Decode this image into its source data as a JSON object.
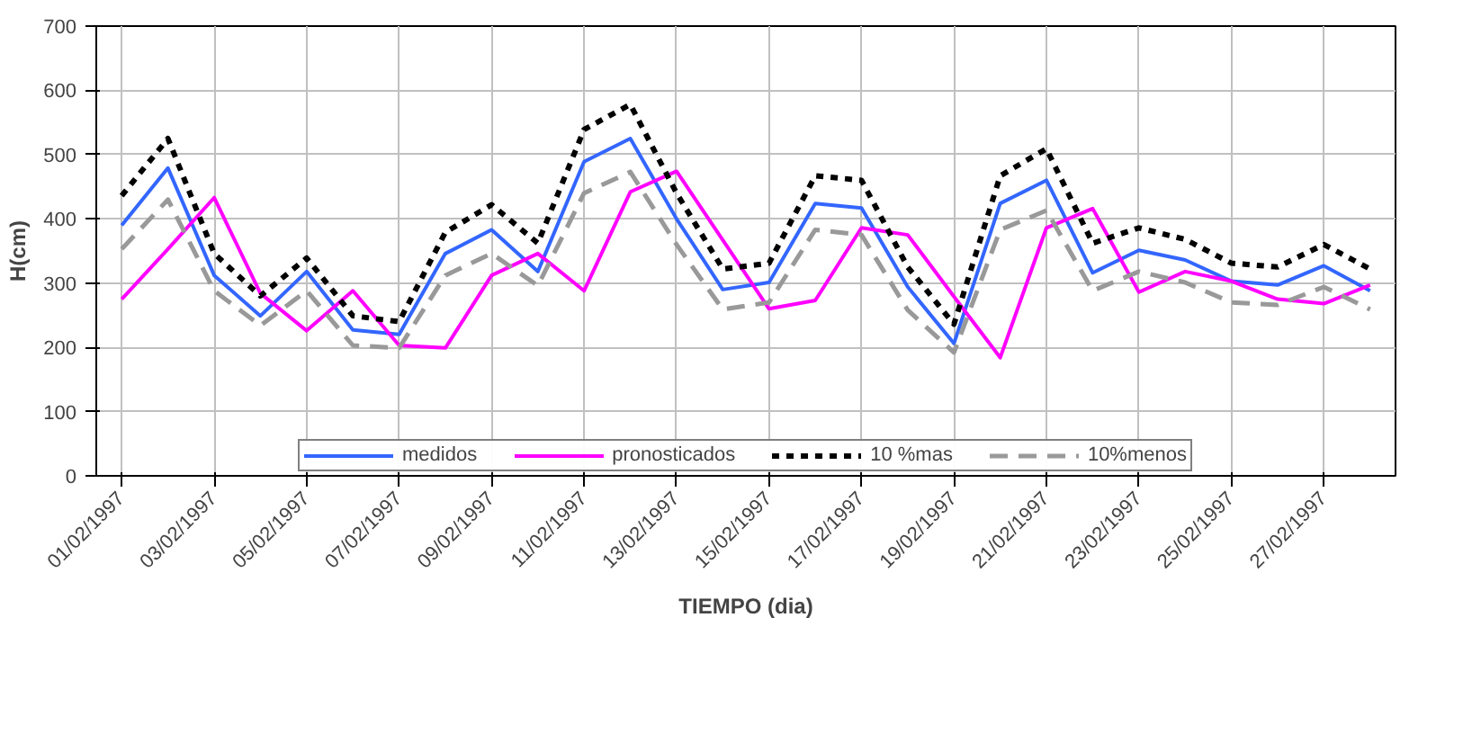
{
  "chart_data": {
    "type": "line",
    "xlabel": "TIEMPO (dia)",
    "ylabel": "H(cm)",
    "categories": [
      "01/02/1997",
      null,
      "03/02/1997",
      null,
      "05/02/1997",
      null,
      "07/02/1997",
      null,
      "09/02/1997",
      null,
      "11/02/1997",
      null,
      "13/02/1997",
      null,
      "15/02/1997",
      null,
      "17/02/1997",
      null,
      "19/02/1997",
      null,
      "21/02/1997",
      null,
      "23/02/1997",
      null,
      "25/02/1997",
      null,
      "27/02/1997",
      null
    ],
    "ylim": [
      0,
      700
    ],
    "yticks": [
      0,
      100,
      200,
      300,
      400,
      500,
      600,
      700
    ],
    "grid": true,
    "legend": "bottom",
    "marker": "none",
    "series": [
      {
        "name": "medidos",
        "color": "#3366ff",
        "line_style": "solid",
        "values": [
          390,
          479,
          312,
          249,
          318,
          227,
          220,
          346,
          383,
          318,
          489,
          525,
          400,
          290,
          301,
          424,
          417,
          294,
          206,
          424,
          460,
          316,
          351,
          336,
          303,
          297,
          327,
          288
        ]
      },
      {
        "name": "pronosticados",
        "color": "#ff00ff",
        "line_style": "solid",
        "values": [
          275,
          353,
          433,
          284,
          226,
          288,
          203,
          199,
          312,
          346,
          288,
          442,
          474,
          367,
          260,
          273,
          386,
          375,
          279,
          184,
          386,
          416,
          286,
          318,
          303,
          275,
          268,
          297
        ]
      },
      {
        "name": "10 %mas",
        "color": "#000000",
        "line_style": "dotted",
        "values": [
          436,
          525,
          346,
          280,
          339,
          249,
          240,
          379,
          422,
          362,
          539,
          578,
          440,
          322,
          331,
          467,
          460,
          325,
          236,
          467,
          509,
          362,
          386,
          368,
          331,
          325,
          360,
          322
        ]
      },
      {
        "name": "10%menos",
        "color": "#999999",
        "line_style": "dashed",
        "values": [
          353,
          430,
          288,
          234,
          288,
          203,
          199,
          312,
          346,
          296,
          440,
          473,
          360,
          259,
          270,
          383,
          375,
          258,
          192,
          383,
          413,
          288,
          318,
          301,
          270,
          266,
          294,
          259
        ]
      }
    ]
  }
}
